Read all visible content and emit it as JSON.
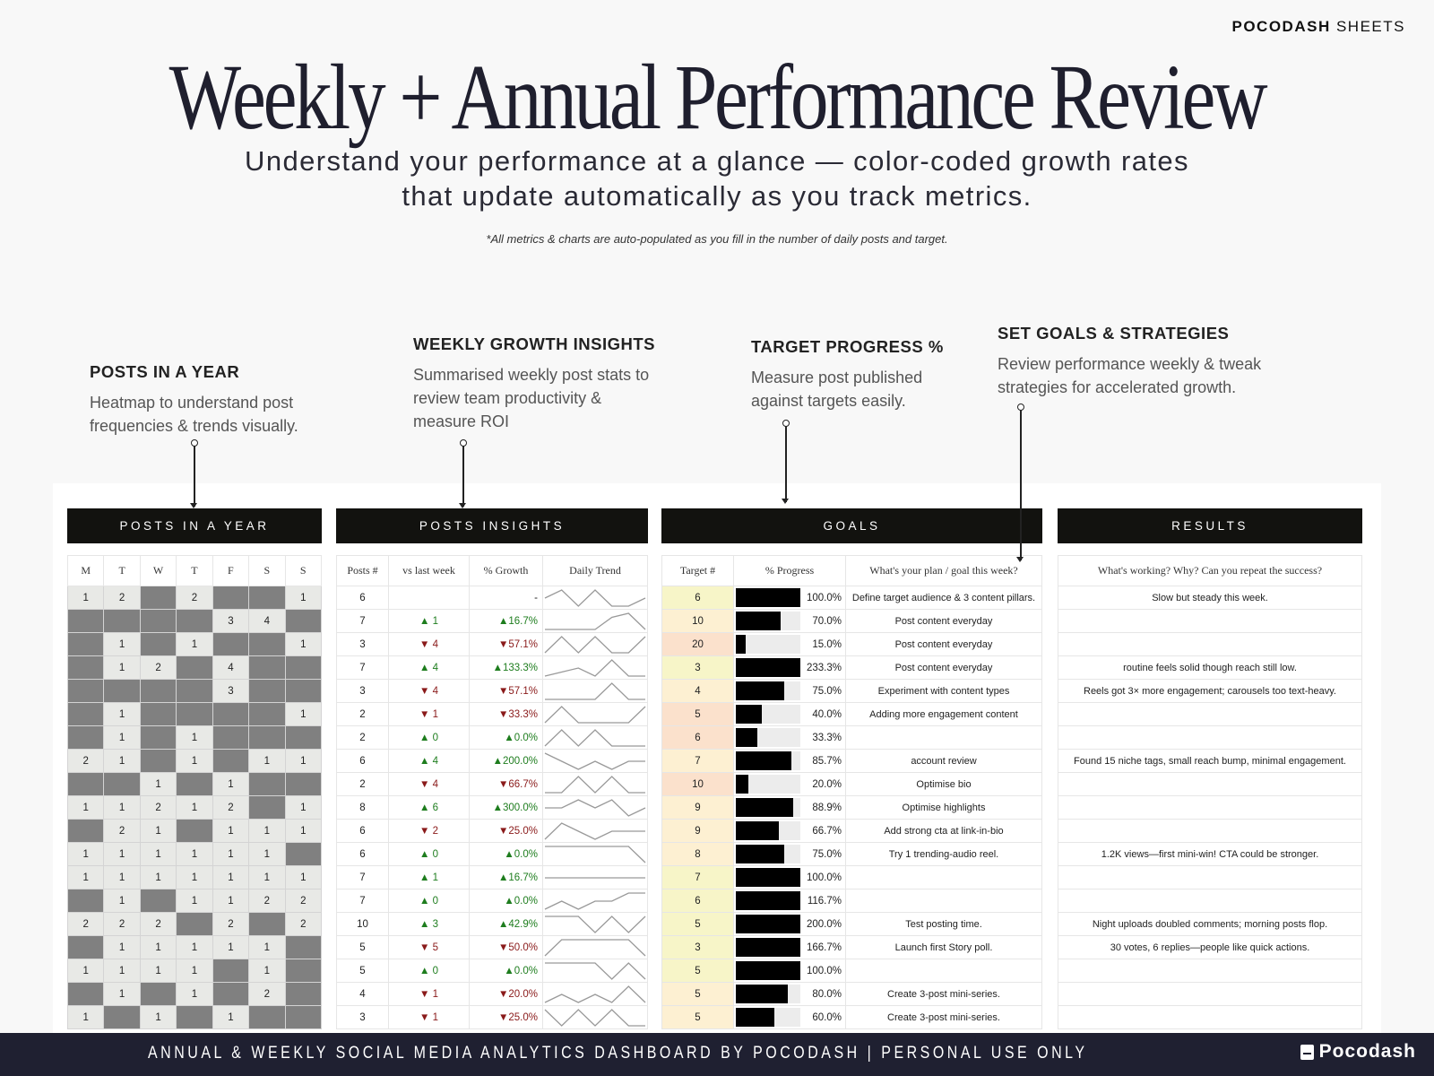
{
  "brand": {
    "bold": "POCODASH",
    "rest": "SHEETS"
  },
  "title": "Weekly + Annual Performance Review",
  "subtitle": [
    "Understand your performance at a glance — color-coded growth rates",
    "that update automatically as you track metrics."
  ],
  "note": "*All metrics & charts are auto-populated as you fill in the number of daily posts and target.",
  "annotations": [
    {
      "heading": "POSTS IN A YEAR",
      "lines": [
        "Heatmap to understand post",
        "frequencies & trends visually."
      ]
    },
    {
      "heading": "WEEKLY GROWTH INSIGHTS",
      "lines": [
        "Summarised weekly post stats to",
        "review team productivity &",
        "measure ROI"
      ]
    },
    {
      "heading": "TARGET PROGRESS %",
      "lines": [
        "Measure post published",
        "against targets easily."
      ]
    },
    {
      "heading": "SET GOALS & STRATEGIES",
      "lines": [
        "Review performance weekly & tweak",
        "strategies for accelerated growth."
      ]
    }
  ],
  "panels": {
    "heatmap": {
      "title": "POSTS IN A YEAR",
      "days": [
        "M",
        "T",
        "W",
        "T",
        "F",
        "S",
        "S"
      ],
      "rows": [
        [
          1,
          2,
          null,
          2,
          null,
          null,
          1
        ],
        [
          null,
          null,
          null,
          null,
          3,
          4,
          null
        ],
        [
          null,
          1,
          null,
          1,
          null,
          null,
          1
        ],
        [
          null,
          1,
          2,
          null,
          4,
          null,
          null
        ],
        [
          null,
          null,
          null,
          null,
          3,
          null,
          null
        ],
        [
          null,
          1,
          null,
          null,
          null,
          null,
          1
        ],
        [
          null,
          1,
          null,
          1,
          null,
          null,
          null
        ],
        [
          2,
          1,
          null,
          1,
          null,
          1,
          1
        ],
        [
          null,
          null,
          1,
          null,
          1,
          null,
          null
        ],
        [
          1,
          1,
          2,
          1,
          2,
          null,
          1
        ],
        [
          null,
          2,
          1,
          null,
          1,
          1,
          1
        ],
        [
          1,
          1,
          1,
          1,
          1,
          1,
          null
        ],
        [
          1,
          1,
          1,
          1,
          1,
          1,
          1
        ],
        [
          null,
          1,
          null,
          1,
          1,
          2,
          2
        ],
        [
          2,
          2,
          2,
          null,
          2,
          null,
          2
        ],
        [
          null,
          1,
          1,
          1,
          1,
          1,
          null
        ],
        [
          1,
          1,
          1,
          1,
          null,
          1,
          null
        ],
        [
          null,
          1,
          null,
          1,
          null,
          2,
          null
        ],
        [
          1,
          null,
          1,
          null,
          1,
          null,
          null
        ]
      ]
    },
    "insights": {
      "title": "POSTS  INSIGHTS",
      "headers": [
        "Posts #",
        "vs last week",
        "% Growth",
        "Daily Trend"
      ],
      "rows": [
        {
          "posts": "6",
          "dir": "",
          "change": "",
          "growth": "-"
        },
        {
          "posts": "7",
          "dir": "up",
          "change": "▲ 1",
          "growth": "▲16.7%"
        },
        {
          "posts": "3",
          "dir": "down",
          "change": "▼ 4",
          "growth": "▼57.1%"
        },
        {
          "posts": "7",
          "dir": "up",
          "change": "▲ 4",
          "growth": "▲133.3%"
        },
        {
          "posts": "3",
          "dir": "down",
          "change": "▼ 4",
          "growth": "▼57.1%"
        },
        {
          "posts": "2",
          "dir": "down",
          "change": "▼ 1",
          "growth": "▼33.3%"
        },
        {
          "posts": "2",
          "dir": "up",
          "change": "▲ 0",
          "growth": "▲0.0%"
        },
        {
          "posts": "6",
          "dir": "up",
          "change": "▲ 4",
          "growth": "▲200.0%"
        },
        {
          "posts": "2",
          "dir": "down",
          "change": "▼ 4",
          "growth": "▼66.7%"
        },
        {
          "posts": "8",
          "dir": "up",
          "change": "▲ 6",
          "growth": "▲300.0%"
        },
        {
          "posts": "6",
          "dir": "down",
          "change": "▼ 2",
          "growth": "▼25.0%"
        },
        {
          "posts": "6",
          "dir": "up",
          "change": "▲ 0",
          "growth": "▲0.0%"
        },
        {
          "posts": "7",
          "dir": "up",
          "change": "▲ 1",
          "growth": "▲16.7%"
        },
        {
          "posts": "7",
          "dir": "up",
          "change": "▲ 0",
          "growth": "▲0.0%"
        },
        {
          "posts": "10",
          "dir": "up",
          "change": "▲ 3",
          "growth": "▲42.9%"
        },
        {
          "posts": "5",
          "dir": "down",
          "change": "▼ 5",
          "growth": "▼50.0%"
        },
        {
          "posts": "5",
          "dir": "up",
          "change": "▲ 0",
          "growth": "▲0.0%"
        },
        {
          "posts": "4",
          "dir": "down",
          "change": "▼ 1",
          "growth": "▼20.0%"
        },
        {
          "posts": "3",
          "dir": "down",
          "change": "▼ 1",
          "growth": "▼25.0%"
        }
      ]
    },
    "goals": {
      "title": "GOALS",
      "headers": [
        "Target #",
        "% Progress",
        "What's your plan / goal this week?"
      ],
      "colors": {
        "met": "#f7f5c8",
        "near": "#fdf0d2",
        "low": "#fbe1cc",
        "bar": "#000000"
      },
      "rows": [
        {
          "target": "6",
          "progress": 100.0,
          "label": "100.0%",
          "plan": "Define target audience & 3 content pillars."
        },
        {
          "target": "10",
          "progress": 70.0,
          "label": "70.0%",
          "plan": "Post content everyday"
        },
        {
          "target": "20",
          "progress": 15.0,
          "label": "15.0%",
          "plan": "Post content everyday"
        },
        {
          "target": "3",
          "progress": 233.3,
          "label": "233.3%",
          "plan": "Post content everyday"
        },
        {
          "target": "4",
          "progress": 75.0,
          "label": "75.0%",
          "plan": "Experiment with content types"
        },
        {
          "target": "5",
          "progress": 40.0,
          "label": "40.0%",
          "plan": "Adding more engagement content"
        },
        {
          "target": "6",
          "progress": 33.3,
          "label": "33.3%",
          "plan": ""
        },
        {
          "target": "7",
          "progress": 85.7,
          "label": "85.7%",
          "plan": "account review"
        },
        {
          "target": "10",
          "progress": 20.0,
          "label": "20.0%",
          "plan": "Optimise bio"
        },
        {
          "target": "9",
          "progress": 88.9,
          "label": "88.9%",
          "plan": "Optimise highlights"
        },
        {
          "target": "9",
          "progress": 66.7,
          "label": "66.7%",
          "plan": "Add strong cta at link-in-bio"
        },
        {
          "target": "8",
          "progress": 75.0,
          "label": "75.0%",
          "plan": "Try 1 trending-audio reel."
        },
        {
          "target": "7",
          "progress": 100.0,
          "label": "100.0%",
          "plan": ""
        },
        {
          "target": "6",
          "progress": 116.7,
          "label": "116.7%",
          "plan": ""
        },
        {
          "target": "5",
          "progress": 200.0,
          "label": "200.0%",
          "plan": "Test posting time."
        },
        {
          "target": "3",
          "progress": 166.7,
          "label": "166.7%",
          "plan": "Launch first Story poll."
        },
        {
          "target": "5",
          "progress": 100.0,
          "label": "100.0%",
          "plan": ""
        },
        {
          "target": "5",
          "progress": 80.0,
          "label": "80.0%",
          "plan": "Create 3-post mini-series."
        },
        {
          "target": "5",
          "progress": 60.0,
          "label": "60.0%",
          "plan": "Create 3-post mini-series."
        }
      ]
    },
    "results": {
      "title": "RESULTS",
      "header": "What's working? Why? Can you repeat the success?",
      "rows": [
        "Slow but steady this week.",
        "",
        "",
        "routine feels solid though reach still low.",
        "Reels got 3× more engagement; carousels too text-heavy.",
        "",
        "",
        "Found 15 niche tags, small reach bump, minimal engagement.",
        "",
        "",
        "",
        "1.2K views—first mini-win! CTA could be stronger.",
        "",
        "",
        "Night uploads doubled comments; morning posts flop.",
        "30 votes, 6 replies—people like quick actions.",
        "",
        "",
        ""
      ]
    }
  },
  "footer": {
    "text": "ANNUAL & WEEKLY SOCIAL MEDIA ANALYTICS DASHBOARD BY POCODASH | PERSONAL USE ONLY",
    "logo": "Pocodash"
  }
}
